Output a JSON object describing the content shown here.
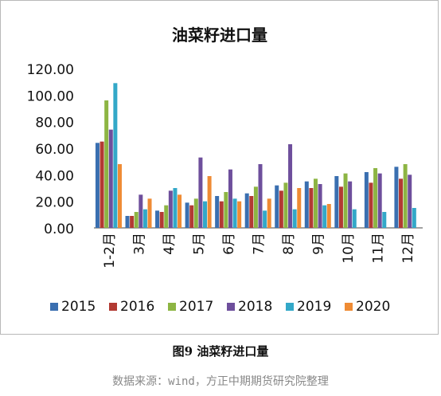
{
  "caption": "图9 油菜籽进口量",
  "source": "数据来源：wind，方正中期期货研究院整理",
  "chart_data": {
    "type": "bar",
    "title": "油菜籽进口量",
    "categories": [
      "1-2月",
      "3月",
      "4月",
      "5月",
      "6月",
      "7月",
      "8月",
      "9月",
      "10月",
      "11月",
      "12月"
    ],
    "ylim": [
      0,
      120
    ],
    "yticks": [
      "0.00",
      "20.00",
      "40.00",
      "60.00",
      "80.00",
      "100.00",
      "120.00"
    ],
    "grid": false,
    "legend_position": "bottom",
    "series": [
      {
        "name": "2015",
        "color": "#3a6fb0",
        "values": [
          64,
          9,
          13,
          19,
          24,
          26,
          32,
          35,
          39,
          42,
          46
        ]
      },
      {
        "name": "2016",
        "color": "#b23a33",
        "values": [
          65,
          9,
          12,
          17,
          20,
          24,
          28,
          30,
          31,
          34,
          37
        ]
      },
      {
        "name": "2017",
        "color": "#8db543",
        "values": [
          96,
          12,
          17,
          22,
          27,
          31,
          34,
          37,
          41,
          45,
          48
        ]
      },
      {
        "name": "2018",
        "color": "#6e4f9c",
        "values": [
          74,
          25,
          28,
          53,
          44,
          48,
          63,
          33,
          35,
          41,
          40
        ]
      },
      {
        "name": "2019",
        "color": "#33a8c8",
        "values": [
          109,
          14,
          30,
          20,
          22,
          13,
          14,
          17,
          14,
          12,
          15
        ]
      },
      {
        "name": "2020",
        "color": "#ef8b34",
        "values": [
          48,
          22,
          25,
          39,
          20,
          22,
          30,
          18,
          null,
          null,
          null
        ]
      }
    ]
  }
}
